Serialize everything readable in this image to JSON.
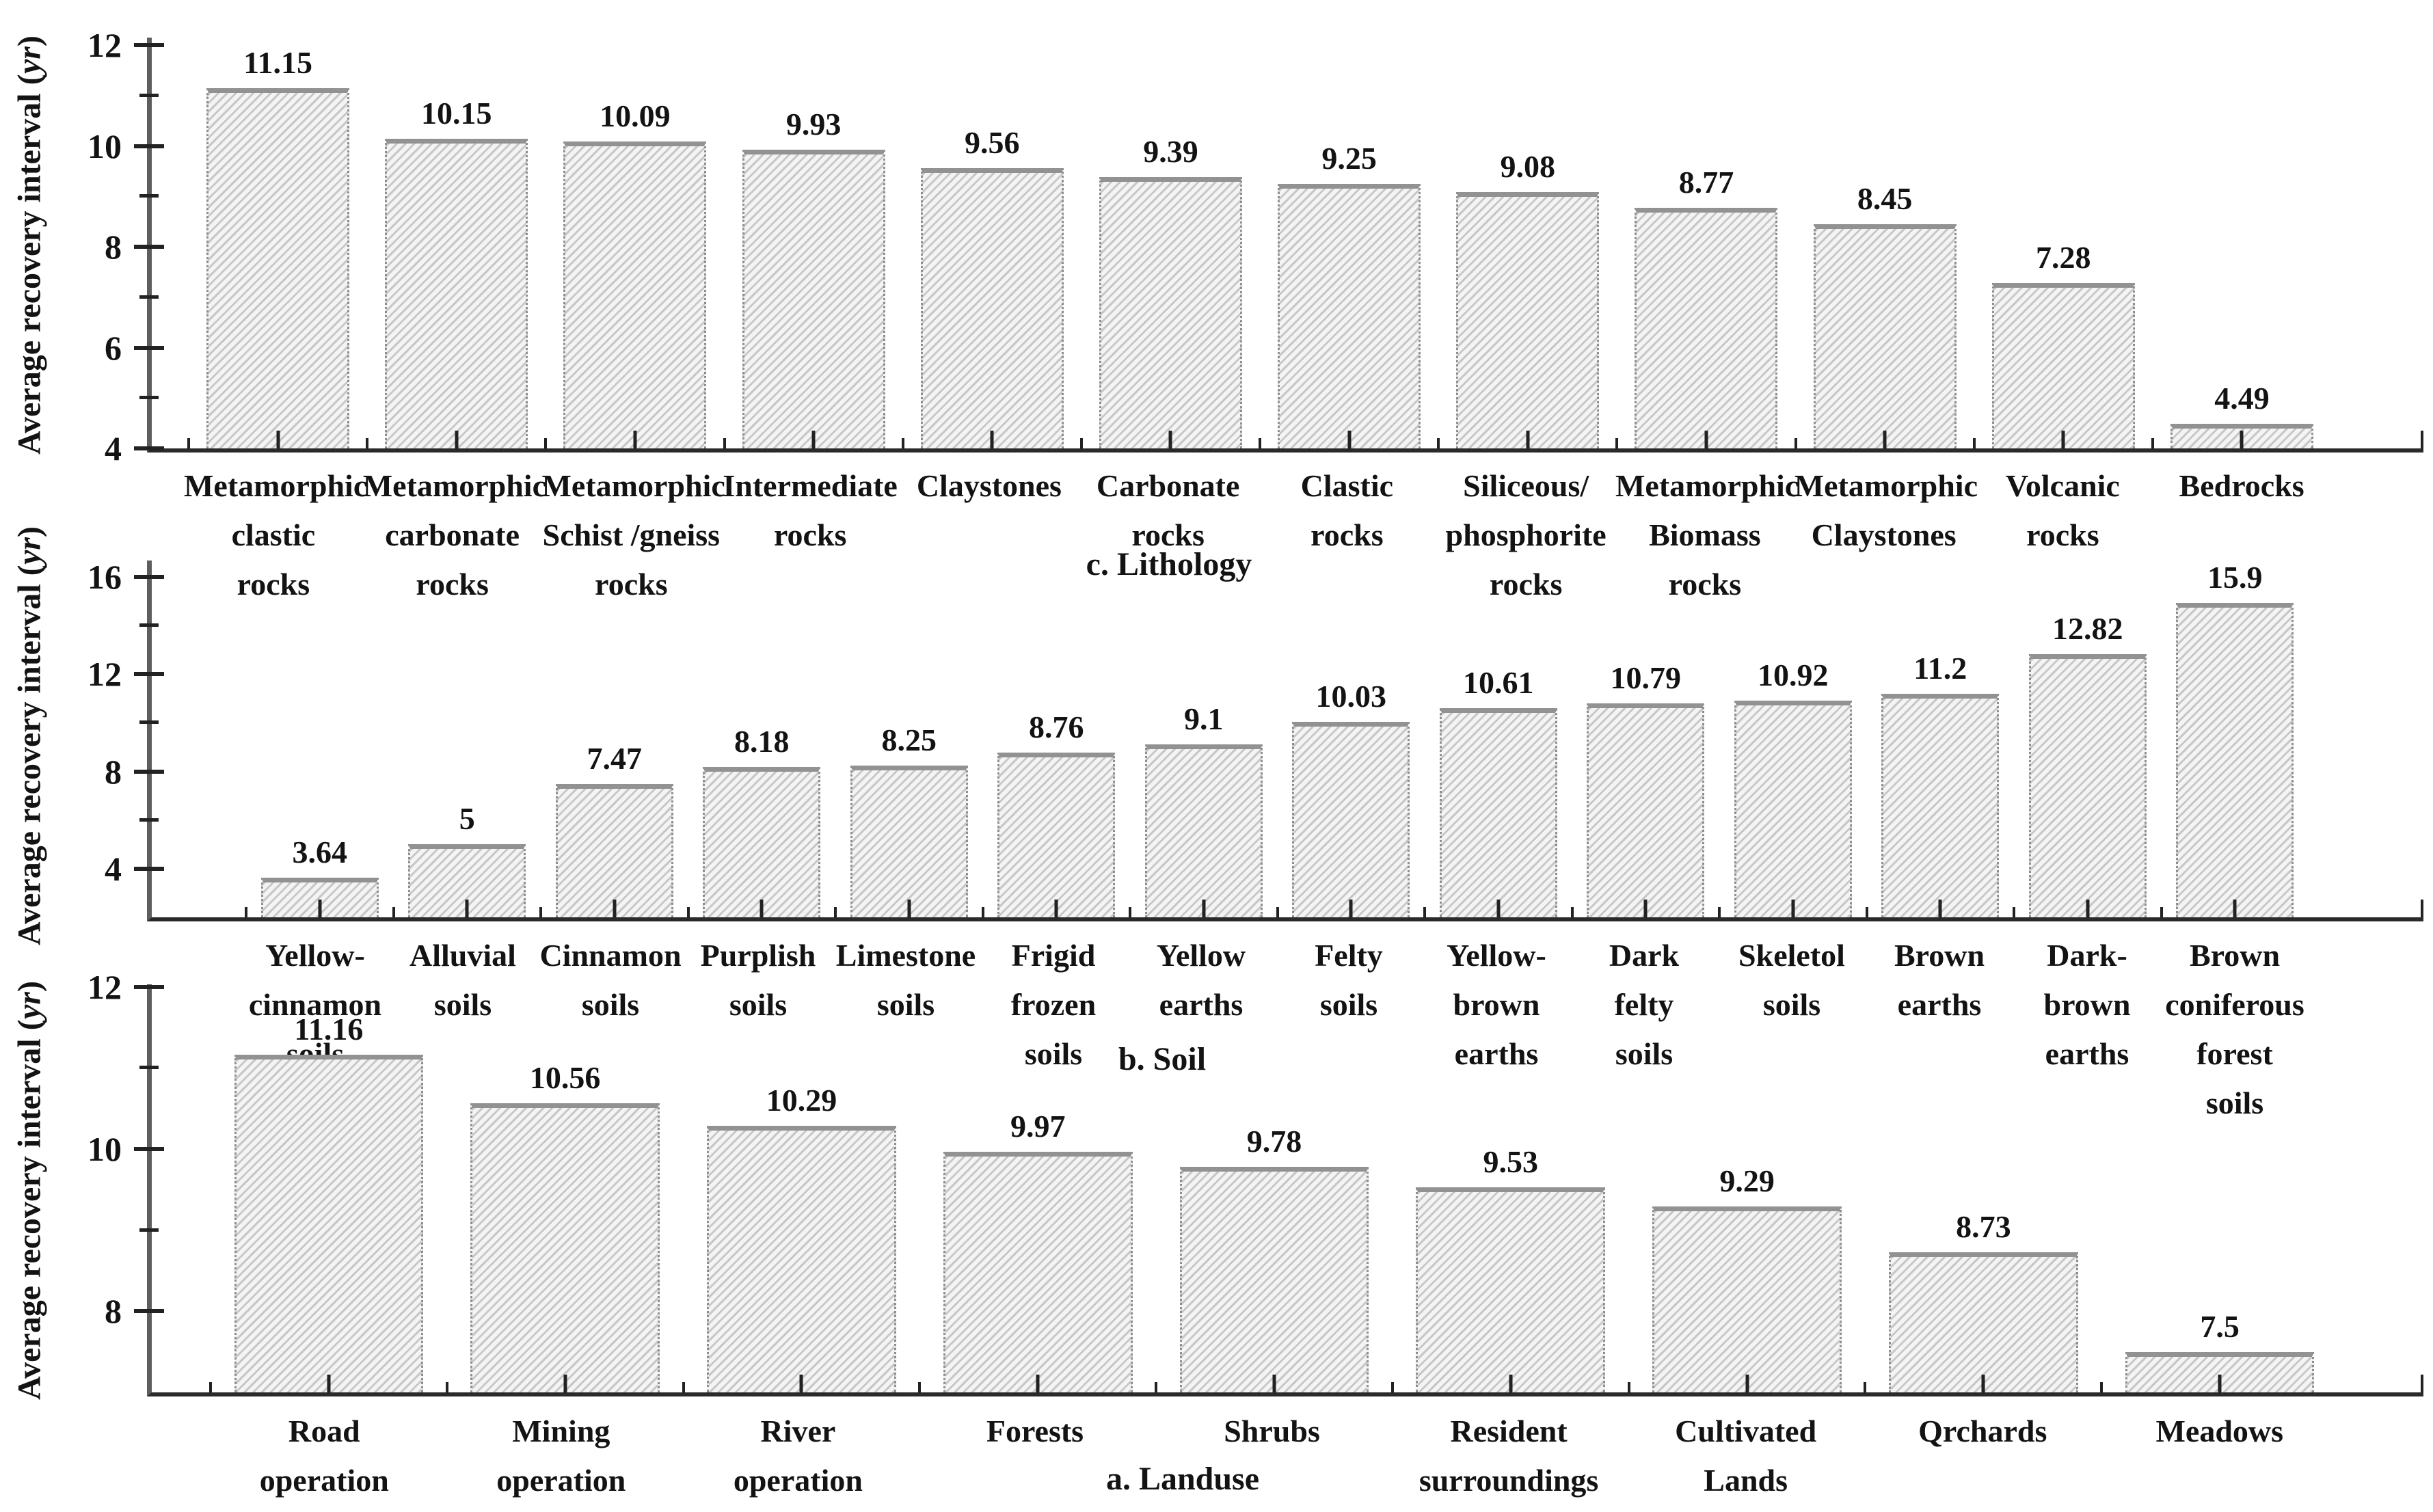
{
  "figure": {
    "background": "#ffffff",
    "text_color": "#131313",
    "axis_color": "#2a2a2a",
    "spine_color": "#5e5e5e",
    "bar_fill": "#f4f4f4",
    "bar_stripe": "#c7c7c7",
    "bar_cap": "#929292",
    "bar_border": "#8f8f8f"
  },
  "axis_title": {
    "prefix": "Average recovery interval (",
    "unit": "yr",
    "suffix": ")"
  },
  "chart_data": [
    {
      "id": "lithology",
      "type": "bar",
      "caption": "c. Lithology",
      "ylabel": "Average recovery interval (yr)",
      "ymin": 4,
      "ymax": 12.15,
      "grid": false,
      "yticks_major": [
        12,
        10,
        8,
        6,
        4
      ],
      "yticks_minor": [
        11,
        9,
        7,
        5
      ],
      "categories": [
        "Metamorphic\nclastic\nrocks",
        "Metamorphic\ncarbonate\nrocks",
        "Metamorphic\nSchist /gneiss\nrocks",
        "Intermediate\nrocks",
        "Claystones",
        "Carbonate\nrocks",
        "Clastic\nrocks",
        "Siliceous/\nphosphorite\nrocks",
        "Metamorphic\nBiomass\nrocks",
        "Metamorphic\nClaystones",
        "Volcanic\nrocks",
        "Bedrocks"
      ],
      "values": [
        "11.15",
        "10.15",
        "10.09",
        "9.93",
        "9.56",
        "9.39",
        "9.25",
        "9.08",
        "8.77",
        "8.45",
        "7.28",
        "4.49"
      ]
    },
    {
      "id": "soil",
      "type": "bar",
      "caption": "b. Soil",
      "ylabel": "Average recovery interval (yr)",
      "ymin": 2,
      "ymax": 16.67,
      "grid": false,
      "yticks_major": [
        16,
        12,
        8,
        4
      ],
      "yticks_minor": [
        14,
        10,
        6
      ],
      "categories": [
        "Yellow-\ncinnamon\nsoils",
        "Alluvial\nsoils",
        "Cinnamon\nsoils",
        "Purplish\nsoils",
        "Limestone\nsoils",
        "Frigid\nfrozen\nsoils",
        "Yellow\nearths",
        "Felty\nsoils",
        "Yellow-\nbrown\nearths",
        "Dark\nfelty\nsoils",
        "Skeletol\nsoils",
        "Brown\nearths",
        "Dark-\nbrown\nearths",
        "Brown\nconiferous\nforest\nsoils"
      ],
      "values": [
        "3.64",
        "5",
        "7.47",
        "8.18",
        "8.25",
        "8.76",
        "9.1",
        "10.03",
        "10.61",
        "10.79",
        "10.92",
        "11.2",
        "12.82",
        "15.9"
      ]
    },
    {
      "id": "landuse",
      "type": "bar",
      "caption": "a. Landuse",
      "ylabel": "Average recovery interval (yr)",
      "ymin": 7,
      "ymax": 12.03,
      "grid": false,
      "yticks_major": [
        12,
        10,
        8
      ],
      "yticks_minor": [
        11,
        9
      ],
      "categories": [
        "Road\noperation",
        "Mining\noperation",
        "River\noperation",
        "Forests",
        "Shrubs",
        "Resident\nsurroundings",
        "Cultivated\nLands",
        "Qrchards",
        "Meadows"
      ],
      "values": [
        "11.16",
        "10.56",
        "10.29",
        "9.97",
        "9.78",
        "9.53",
        "9.29",
        "8.73",
        "7.5"
      ]
    }
  ]
}
